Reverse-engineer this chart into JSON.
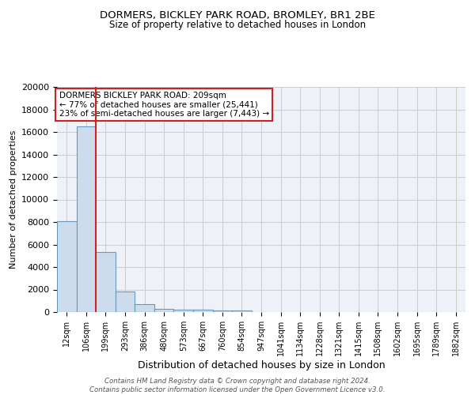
{
  "title1": "DORMERS, BICKLEY PARK ROAD, BROMLEY, BR1 2BE",
  "title2": "Size of property relative to detached houses in London",
  "xlabel": "Distribution of detached houses by size in London",
  "ylabel": "Number of detached properties",
  "bin_labels": [
    "12sqm",
    "106sqm",
    "199sqm",
    "293sqm",
    "386sqm",
    "480sqm",
    "573sqm",
    "667sqm",
    "760sqm",
    "854sqm",
    "947sqm",
    "1041sqm",
    "1134sqm",
    "1228sqm",
    "1321sqm",
    "1415sqm",
    "1508sqm",
    "1602sqm",
    "1695sqm",
    "1789sqm",
    "1882sqm"
  ],
  "bar_heights": [
    8100,
    16500,
    5300,
    1850,
    700,
    300,
    220,
    200,
    170,
    130,
    0,
    0,
    0,
    0,
    0,
    0,
    0,
    0,
    0,
    0,
    0
  ],
  "bar_color": "#ccdcec",
  "bar_edge_color": "#6699bb",
  "grid_color": "#cccccc",
  "bg_color": "#eef2f8",
  "vline_color": "#cc2222",
  "annotation_text": "DORMERS BICKLEY PARK ROAD: 209sqm\n← 77% of detached houses are smaller (25,441)\n23% of semi-detached houses are larger (7,443) →",
  "annotation_box_color": "#ffffff",
  "annotation_box_edge": "#cc2222",
  "footer_text": "Contains HM Land Registry data © Crown copyright and database right 2024.\nContains public sector information licensed under the Open Government Licence v3.0.",
  "ylim": [
    0,
    20000
  ],
  "yticks": [
    0,
    2000,
    4000,
    6000,
    8000,
    10000,
    12000,
    14000,
    16000,
    18000,
    20000
  ]
}
